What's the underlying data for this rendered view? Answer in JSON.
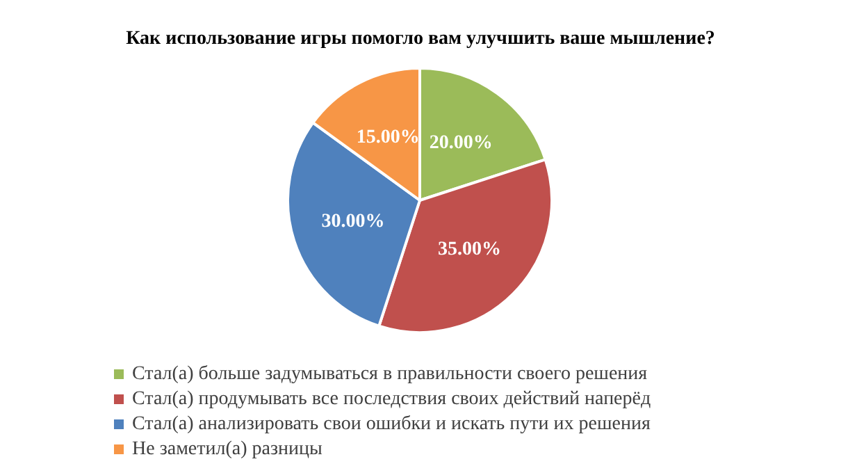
{
  "chart_data": {
    "type": "pie",
    "title": "Как использование игры помогло вам улучшить ваше мышление?",
    "categories": [
      "Стал(а) больше задумываться в правильности своего решения",
      "Стал(а) продумывать все последствия своих действий наперёд",
      "Стал(а) анализировать свои ошибки и искать пути их решения",
      "Не заметил(а) разницы"
    ],
    "values": [
      20,
      35,
      30,
      15
    ],
    "colors": [
      "#9bbb59",
      "#c0504d",
      "#4f81bd",
      "#f79646"
    ],
    "value_labels": [
      "20.00%",
      "35.00%",
      "30.00%",
      "15.00%"
    ],
    "legend": "bottom"
  }
}
